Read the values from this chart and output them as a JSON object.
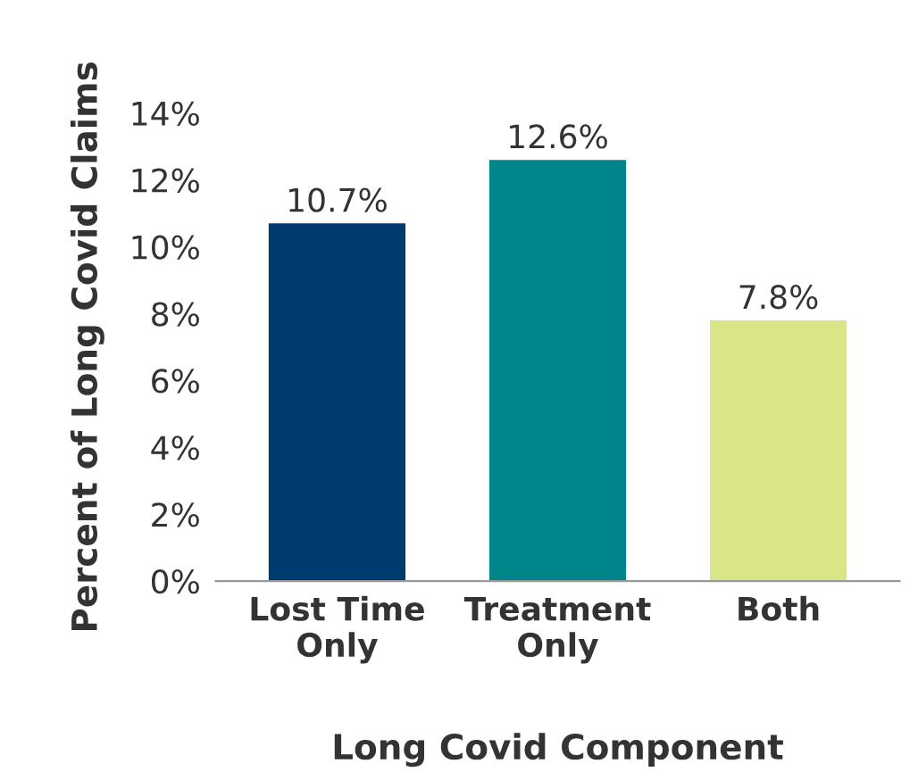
{
  "chart_data": {
    "type": "bar",
    "xlabel": "Long Covid Component",
    "ylabel": "Percent of Long Covid Claims",
    "categories": [
      "Lost Time\nOnly",
      "Treatment\nOnly",
      "Both"
    ],
    "values": [
      10.7,
      12.6,
      7.8
    ],
    "colors": [
      "#003b6f",
      "#00868a",
      "#d9e586"
    ],
    "value_labels": [
      "10.7%",
      "12.6%",
      "7.8%"
    ],
    "ylim": [
      0,
      14
    ],
    "yticks": [
      {
        "value": 0,
        "label": "0%"
      },
      {
        "value": 2,
        "label": "2%"
      },
      {
        "value": 4,
        "label": "4%"
      },
      {
        "value": 6,
        "label": "6%"
      },
      {
        "value": 8,
        "label": "8%"
      },
      {
        "value": 10,
        "label": "10%"
      },
      {
        "value": 12,
        "label": "12%"
      },
      {
        "value": 14,
        "label": "14%"
      }
    ],
    "grid": false,
    "legend": false
  }
}
